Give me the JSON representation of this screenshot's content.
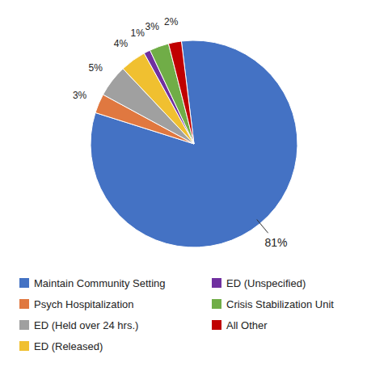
{
  "chart_data": {
    "type": "pie",
    "categories": [
      "Maintain Community Setting",
      "Psych Hospitalization",
      "ED (Held over 24 hrs.)",
      "ED (Released)",
      "ED (Unspecified)",
      "Crisis Stabilization Unit",
      "All Other"
    ],
    "values": [
      81,
      3,
      5,
      4,
      1,
      3,
      2
    ],
    "value_labels": [
      "81%",
      "3%",
      "5%",
      "4%",
      "1%",
      "3%",
      "2%"
    ],
    "colors": [
      "#4472C4",
      "#E07840",
      "#A0A0A0",
      "#F0C030",
      "#7030A0",
      "#70AD47",
      "#C00000"
    ],
    "data_labels": true,
    "legend": "bottom"
  }
}
